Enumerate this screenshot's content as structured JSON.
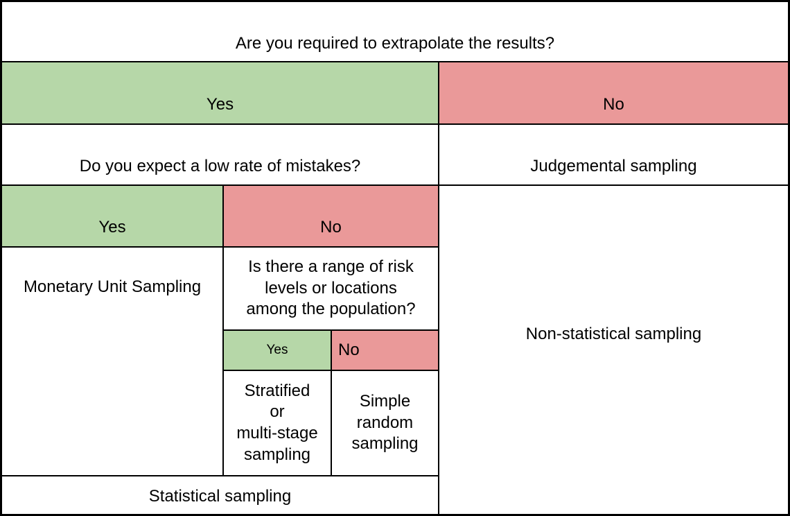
{
  "colors": {
    "yes_green": "#b6d7a8",
    "no_red": "#ea9999",
    "cell_white": "#ffffff",
    "border_black": "#000000"
  },
  "table": {
    "question_extrapolate": "Are you required to extrapolate the results?",
    "extrapolate_yes": "Yes",
    "extrapolate_no": "No",
    "question_low_mistakes": "Do you expect a low rate of mistakes?",
    "judgemental": "Judgemental sampling",
    "low_mistakes_yes": "Yes",
    "low_mistakes_no": "No",
    "monetary_unit": "Monetary Unit Sampling",
    "question_risk_range": "Is there a range of risk\nlevels or locations\namong the population?",
    "risk_range_yes": "Yes",
    "risk_range_no": "No",
    "stratified": "Stratified\nor\nmulti-stage\nsampling",
    "simple_random": "Simple\nrandom\nsampling",
    "statistical": "Statistical sampling",
    "non_statistical": "Non-statistical sampling"
  }
}
